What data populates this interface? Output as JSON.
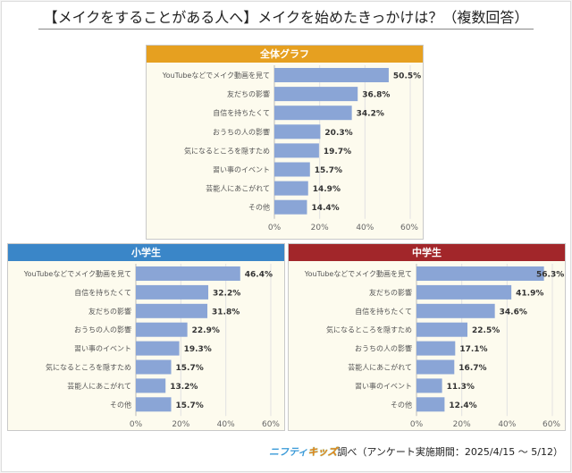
{
  "title": "【メイクをすることがある人へ】メイクを始めたきっかけは？（複数回答）",
  "footer": {
    "logo_part1": "ニフティ",
    "logo_part2": "キッズ",
    "text": "調べ（アンケート実施期間：2025/4/15 ～ 5/12）"
  },
  "colors": {
    "bar": "#8aa5d6",
    "overall_header": "#e6a020",
    "elementary_header": "#3a86c8",
    "junior_high_header": "#a2262a"
  },
  "chart_data": [
    {
      "type": "bar",
      "orientation": "horizontal",
      "title": "全体グラフ",
      "categories": [
        "YouTubeなどでメイク動画を見て",
        "友だちの影響",
        "自信を持ちたくて",
        "おうちの人の影響",
        "気になるところを隠すため",
        "習い事のイベント",
        "芸能人にあこがれて",
        "その他"
      ],
      "values": [
        50.5,
        36.8,
        34.2,
        20.3,
        19.7,
        15.7,
        14.9,
        14.4
      ],
      "labels": [
        "50.5%",
        "36.8%",
        "34.2%",
        "20.3%",
        "19.7%",
        "15.7%",
        "14.9%",
        "14.4%"
      ],
      "xlim": [
        0,
        60
      ],
      "xticks": [
        "0%",
        "20%",
        "40%",
        "60%"
      ],
      "grid": true
    },
    {
      "type": "bar",
      "orientation": "horizontal",
      "title": "小学生",
      "categories": [
        "YouTubeなどでメイク動画を見て",
        "自信を持ちたくて",
        "友だちの影響",
        "おうちの人の影響",
        "習い事のイベント",
        "気になるところを隠すため",
        "芸能人にあこがれて",
        "その他"
      ],
      "values": [
        46.4,
        32.2,
        31.8,
        22.9,
        19.3,
        15.7,
        13.2,
        15.7
      ],
      "labels": [
        "46.4%",
        "32.2%",
        "31.8%",
        "22.9%",
        "19.3%",
        "15.7%",
        "13.2%",
        "15.7%"
      ],
      "xlim": [
        0,
        60
      ],
      "xticks": [
        "0%",
        "20%",
        "40%",
        "60%"
      ],
      "grid": true
    },
    {
      "type": "bar",
      "orientation": "horizontal",
      "title": "中学生",
      "categories": [
        "YouTubeなどでメイク動画を見て",
        "友だちの影響",
        "自信を持ちたくて",
        "気になるところを隠すため",
        "おうちの人の影響",
        "芸能人にあこがれて",
        "習い事のイベント",
        "その他"
      ],
      "values": [
        56.3,
        41.9,
        34.6,
        22.5,
        17.1,
        16.7,
        11.3,
        12.4
      ],
      "labels": [
        "56.3%",
        "41.9%",
        "34.6%",
        "22.5%",
        "17.1%",
        "16.7%",
        "11.3%",
        "12.4%"
      ],
      "xlim": [
        0,
        60
      ],
      "xticks": [
        "0%",
        "20%",
        "40%",
        "60%"
      ],
      "grid": true
    }
  ]
}
